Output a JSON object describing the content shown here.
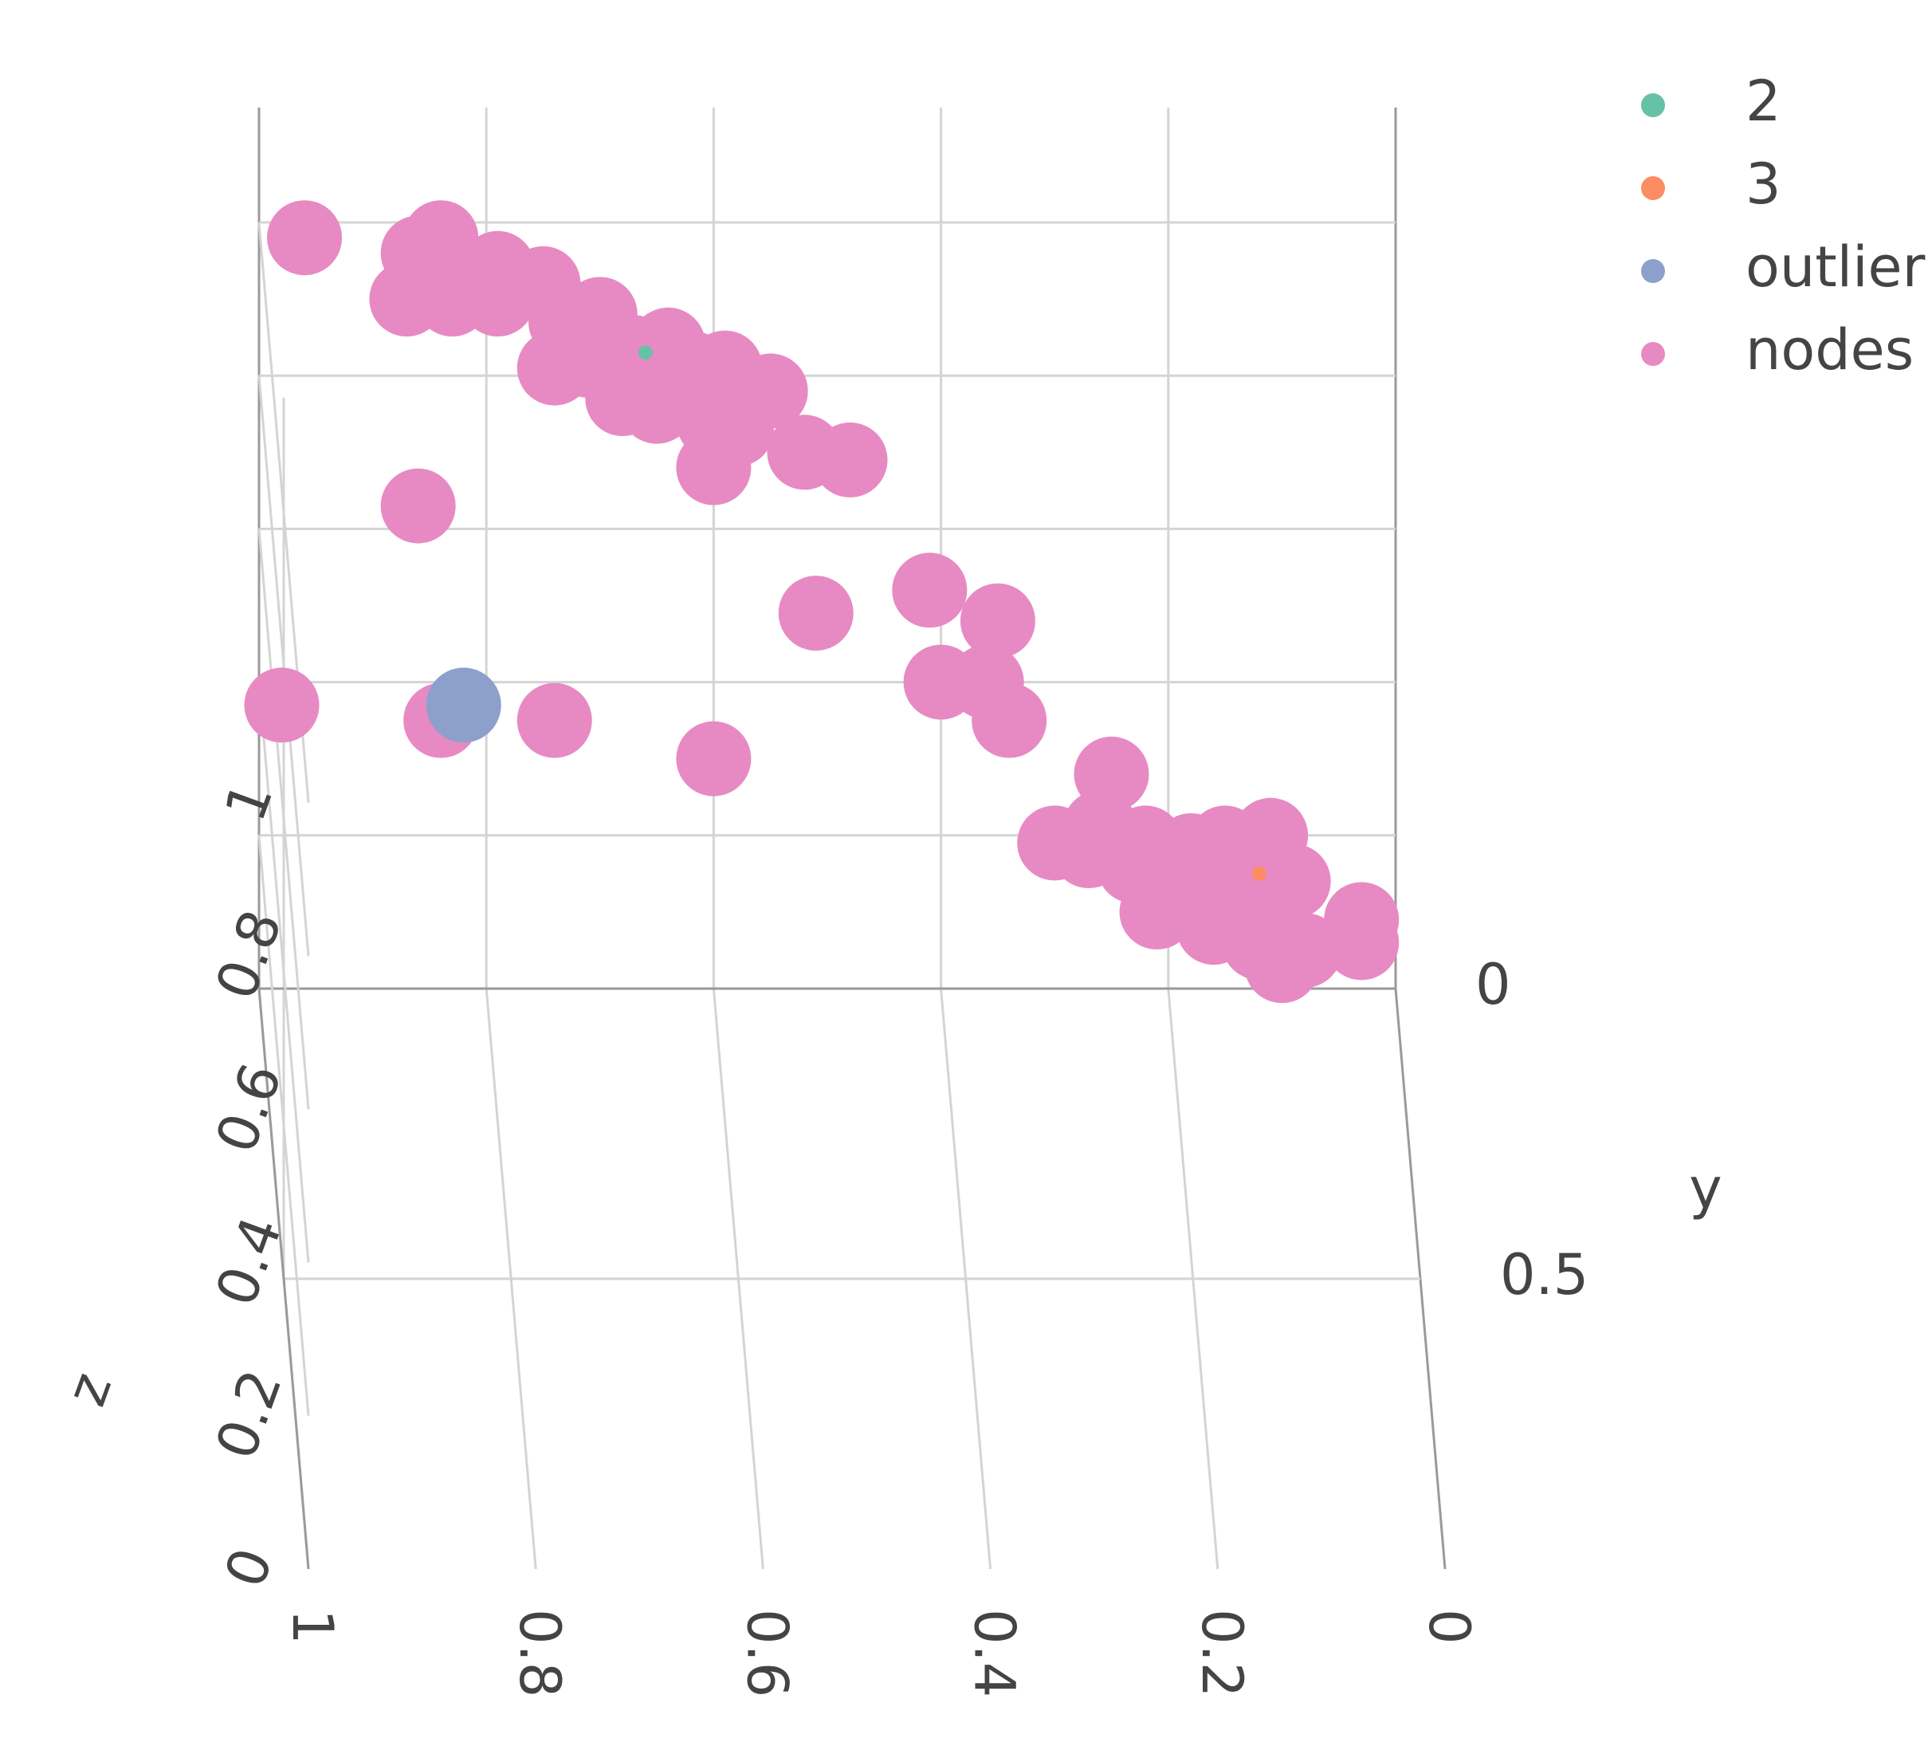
{
  "chart_data": {
    "type": "scatter3d",
    "yaxis_title": "y",
    "zaxis_title": "z",
    "xlim": [
      0,
      1
    ],
    "ylim": [
      0,
      1
    ],
    "zlim": [
      0,
      1.15
    ],
    "xticks": [
      0,
      0.2,
      0.4,
      0.6,
      0.8,
      1
    ],
    "yticks": [
      0,
      0.5
    ],
    "zticks": [
      0,
      0.2,
      0.4,
      0.6,
      0.8,
      1
    ],
    "grid": true,
    "legend": "top-right",
    "series": [
      {
        "name": "2",
        "color": "#66c2a5",
        "x": [
          0.66
        ],
        "y": [
          0
        ],
        "z": [
          0.83
        ]
      },
      {
        "name": "3",
        "color": "#fc8d62",
        "x": [
          0.12
        ],
        "y": [
          0
        ],
        "z": [
          0.15
        ]
      },
      {
        "name": "outlier",
        "color": "#8da0cb",
        "x": [
          0.82
        ],
        "y": [
          0
        ],
        "z": [
          0.37
        ]
      },
      {
        "name": "nodes",
        "color": "#e78ac3",
        "x": [
          0.96,
          0.86,
          0.84,
          0.87,
          0.83,
          0.79,
          0.79,
          0.75,
          0.73,
          0.7,
          0.74,
          0.71,
          0.67,
          0.64,
          0.68,
          0.65,
          0.62,
          0.59,
          0.55,
          0.6,
          0.58,
          0.6,
          0.52,
          0.48,
          0.86,
          0.51,
          0.41,
          0.35,
          0.4,
          0.36,
          0.34,
          0.98,
          0.84,
          0.74,
          0.6,
          0.25,
          0.3,
          0.26,
          0.22,
          0.18,
          0.15,
          0.11,
          0.2,
          0.14,
          0.09,
          0.21,
          0.16,
          0.12,
          0.08,
          0.03,
          0.03,
          0.1,
          0.14,
          0.27,
          0.23
        ],
        "y": [
          0,
          0,
          0,
          0,
          0,
          0,
          0,
          0,
          0,
          0,
          0,
          0,
          0,
          0,
          0,
          0,
          0,
          0,
          0,
          0,
          0,
          0,
          0,
          0,
          0,
          0,
          0,
          0,
          0,
          0,
          0,
          0,
          0,
          0,
          0,
          0,
          0,
          0,
          0,
          0,
          0,
          0,
          0,
          0,
          0,
          0,
          0,
          0,
          0,
          0,
          0,
          0,
          0,
          0,
          0
        ],
        "z": [
          0.98,
          0.96,
          0.98,
          0.9,
          0.9,
          0.94,
          0.9,
          0.92,
          0.87,
          0.88,
          0.81,
          0.82,
          0.83,
          0.84,
          0.77,
          0.76,
          0.81,
          0.81,
          0.78,
          0.74,
          0.73,
          0.68,
          0.7,
          0.69,
          0.63,
          0.49,
          0.52,
          0.48,
          0.4,
          0.4,
          0.35,
          0.37,
          0.35,
          0.35,
          0.3,
          0.28,
          0.19,
          0.21,
          0.19,
          0.18,
          0.19,
          0.2,
          0.13,
          0.13,
          0.14,
          0.1,
          0.08,
          0.06,
          0.05,
          0.09,
          0.06,
          0.03,
          0.1,
          0.18,
          0.16
        ]
      }
    ]
  }
}
